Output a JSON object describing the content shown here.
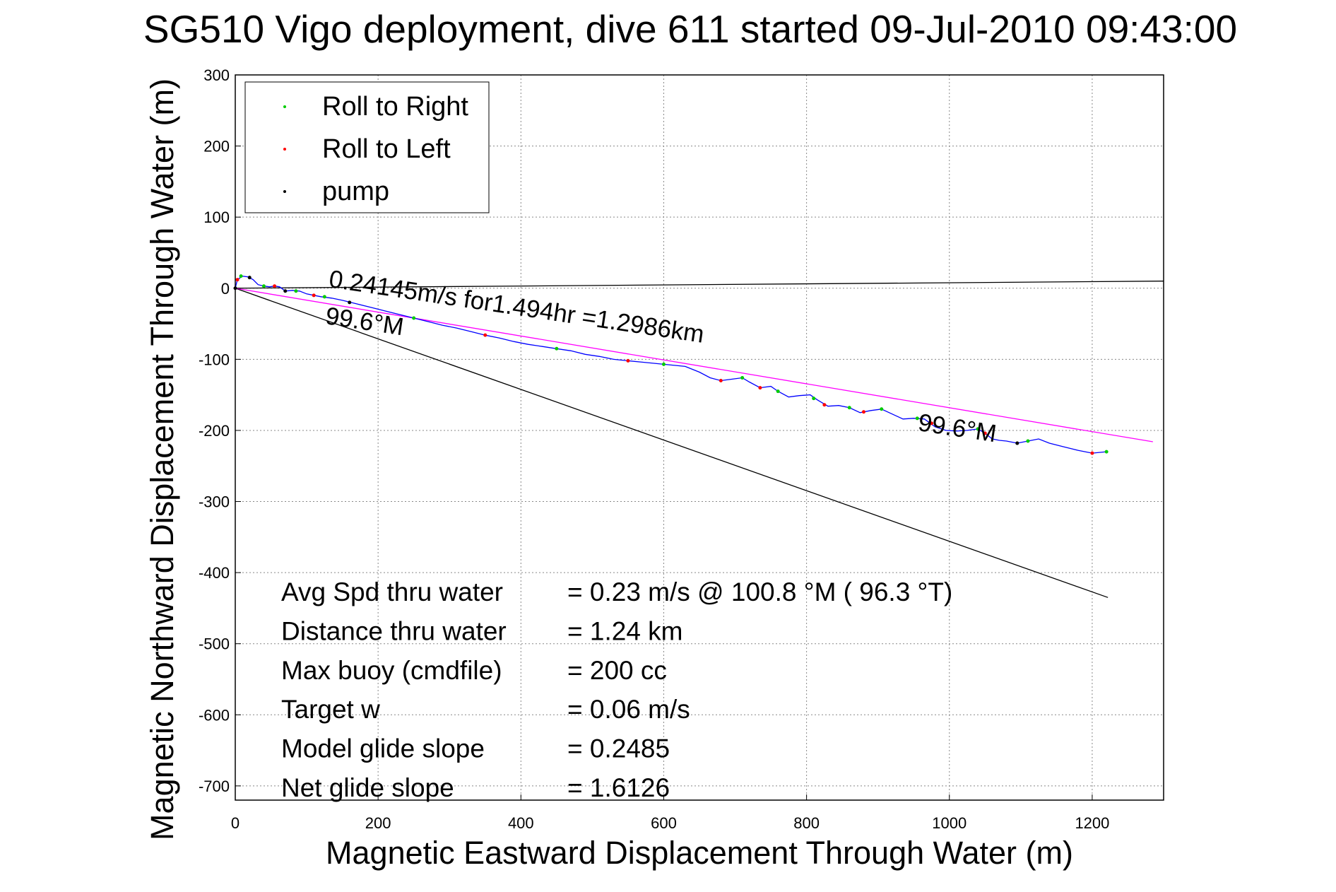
{
  "chart_data": {
    "type": "line",
    "title": "SG510 Vigo deployment, dive 611 started 09-Jul-2010 09:43:00",
    "xlabel": "Magnetic Eastward Displacement Through Water (m)",
    "ylabel": "Magnetic Northward Displacement Through Water (m)",
    "xlim": [
      0,
      1300
    ],
    "ylim": [
      -720,
      300
    ],
    "xticks": [
      "0",
      "200",
      "400",
      "600",
      "800",
      "1000",
      "1200"
    ],
    "yticks": [
      "300",
      "200",
      "100",
      "0",
      "-100",
      "-200",
      "-300",
      "-400",
      "-500",
      "-600",
      "-700"
    ],
    "xtick_values": [
      0,
      200,
      400,
      600,
      800,
      1000,
      1200
    ],
    "ytick_values": [
      300,
      200,
      100,
      0,
      -100,
      -200,
      -300,
      -400,
      -500,
      -600,
      -700
    ],
    "grid": true,
    "legend": {
      "placement": "top-left",
      "entries": [
        {
          "label": "Roll to Right",
          "color": "#00cc00"
        },
        {
          "label": "Roll to Left",
          "color": "#ff0000"
        },
        {
          "label": "pump",
          "color": "#000000"
        }
      ]
    },
    "track": {
      "color": "#0000ff",
      "points": [
        [
          0,
          0
        ],
        [
          3,
          12
        ],
        [
          10,
          17
        ],
        [
          18,
          16
        ],
        [
          25,
          12
        ],
        [
          32,
          5
        ],
        [
          40,
          3
        ],
        [
          48,
          2
        ],
        [
          55,
          3
        ],
        [
          62,
          2
        ],
        [
          70,
          -4
        ],
        [
          80,
          -3
        ],
        [
          90,
          -4
        ],
        [
          100,
          -8
        ],
        [
          110,
          -10
        ],
        [
          120,
          -12
        ],
        [
          135,
          -14
        ],
        [
          150,
          -17
        ],
        [
          170,
          -22
        ],
        [
          190,
          -27
        ],
        [
          210,
          -32
        ],
        [
          230,
          -37
        ],
        [
          250,
          -42
        ],
        [
          270,
          -47
        ],
        [
          290,
          -52
        ],
        [
          310,
          -56
        ],
        [
          330,
          -61
        ],
        [
          350,
          -66
        ],
        [
          370,
          -70
        ],
        [
          390,
          -75
        ],
        [
          410,
          -79
        ],
        [
          430,
          -82
        ],
        [
          450,
          -85
        ],
        [
          470,
          -88
        ],
        [
          490,
          -93
        ],
        [
          510,
          -96
        ],
        [
          530,
          -100
        ],
        [
          550,
          -102
        ],
        [
          570,
          -104
        ],
        [
          590,
          -106
        ],
        [
          610,
          -108
        ],
        [
          630,
          -110
        ],
        [
          650,
          -118
        ],
        [
          665,
          -126
        ],
        [
          680,
          -130
        ],
        [
          695,
          -128
        ],
        [
          710,
          -126
        ],
        [
          720,
          -132
        ],
        [
          735,
          -140
        ],
        [
          750,
          -138
        ],
        [
          760,
          -145
        ],
        [
          775,
          -153
        ],
        [
          790,
          -151
        ],
        [
          805,
          -150
        ],
        [
          815,
          -157
        ],
        [
          830,
          -166
        ],
        [
          845,
          -165
        ],
        [
          860,
          -168
        ],
        [
          875,
          -175
        ],
        [
          890,
          -172
        ],
        [
          905,
          -170
        ],
        [
          920,
          -177
        ],
        [
          935,
          -184
        ],
        [
          950,
          -183
        ],
        [
          965,
          -184
        ],
        [
          980,
          -195
        ],
        [
          995,
          -200
        ],
        [
          1010,
          -201
        ],
        [
          1025,
          -200
        ],
        [
          1040,
          -198
        ],
        [
          1050,
          -204
        ],
        [
          1060,
          -212
        ],
        [
          1070,
          -214
        ],
        [
          1080,
          -215
        ],
        [
          1095,
          -218
        ],
        [
          1110,
          -215
        ],
        [
          1125,
          -212
        ],
        [
          1140,
          -218
        ],
        [
          1160,
          -223
        ],
        [
          1180,
          -228
        ],
        [
          1200,
          -232
        ],
        [
          1220,
          -230
        ]
      ],
      "roll_right": [
        [
          8,
          17
        ],
        [
          40,
          3
        ],
        [
          85,
          -4
        ],
        [
          125,
          -12
        ],
        [
          250,
          -42
        ],
        [
          450,
          -85
        ],
        [
          600,
          -107
        ],
        [
          710,
          -126
        ],
        [
          760,
          -145
        ],
        [
          810,
          -155
        ],
        [
          860,
          -168
        ],
        [
          905,
          -170
        ],
        [
          955,
          -183
        ],
        [
          1040,
          -198
        ],
        [
          1110,
          -215
        ],
        [
          1220,
          -230
        ]
      ],
      "roll_left": [
        [
          3,
          12
        ],
        [
          55,
          3
        ],
        [
          110,
          -10
        ],
        [
          350,
          -66
        ],
        [
          550,
          -102
        ],
        [
          680,
          -130
        ],
        [
          735,
          -140
        ],
        [
          825,
          -164
        ],
        [
          880,
          -174
        ],
        [
          975,
          -190
        ],
        [
          1050,
          -204
        ],
        [
          1200,
          -232
        ]
      ],
      "pump": [
        [
          0,
          0
        ],
        [
          20,
          15
        ],
        [
          70,
          -4
        ],
        [
          160,
          -20
        ],
        [
          1095,
          -218
        ]
      ]
    },
    "reference_lines": [
      {
        "name": "horizontal",
        "color": "#000000",
        "points": [
          [
            0,
            0
          ],
          [
            1300,
            10
          ]
        ]
      },
      {
        "name": "heading",
        "color": "#000000",
        "points": [
          [
            0,
            0
          ],
          [
            1222,
            -435
          ]
        ]
      },
      {
        "name": "net",
        "color": "#ff00ff",
        "points": [
          [
            0,
            0
          ],
          [
            1285,
            -216
          ]
        ]
      }
    ],
    "annotations": [
      {
        "text": "0.24145m/s for1.494hr =1.2986km",
        "at": [
          130,
          2
        ],
        "rotate": 8.5
      },
      {
        "text": "99.6°M",
        "at": [
          125,
          -50
        ],
        "rotate": 8.5
      },
      {
        "text": "99.6°M",
        "at": [
          955,
          -200
        ],
        "rotate": 8.5
      }
    ],
    "stats": [
      {
        "label": "Avg Spd thru water",
        "value": "=  0.23 m/s @ 100.8 °M ( 96.3 °T)"
      },
      {
        "label": "Distance thru water",
        "value": "=  1.24 km"
      },
      {
        "label": "Max buoy (cmdfile)",
        "value": "= 200 cc"
      },
      {
        "label": "Target w",
        "value": "= 0.06 m/s"
      },
      {
        "label": "Model glide slope",
        "value": "= 0.2485"
      },
      {
        "label": "Net glide slope",
        "value": "= 1.6126"
      }
    ]
  }
}
